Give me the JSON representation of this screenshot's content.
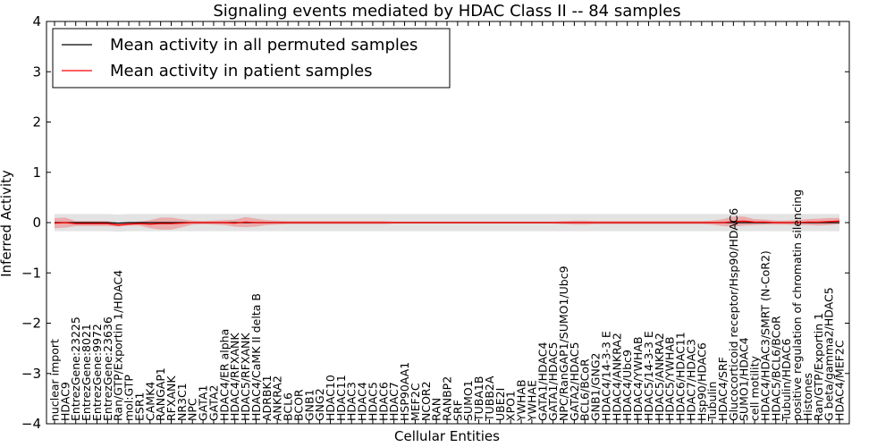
{
  "chart_data": {
    "type": "line",
    "title": "Signaling events mediated by HDAC Class II -- 84 samples",
    "xlabel": "Cellular Entities",
    "ylabel": "Inferred Activity",
    "ylim": [
      -4,
      4
    ],
    "yticks": [
      4,
      3,
      2,
      1,
      0,
      -1,
      -2,
      -3,
      -4
    ],
    "grid": false,
    "legend_position": "top-left",
    "categories": [
      "nuclear import",
      "HDAC9",
      "EntrezGene:23225",
      "EntrezGene:8021",
      "EntrezGene:9972",
      "EntrezGene:23636",
      "Ran/GTP/Exportin 1/HDAC4",
      "mol:GTP",
      "ESR1",
      "CAMK4",
      "RANGAP1",
      "RFXANK",
      "NR3C1",
      "NPC",
      "GATA1",
      "GATA2",
      "HDAC4/ER alpha",
      "HDAC4/RFXANK",
      "HDAC5/RFXANK",
      "HDAC4/CaMK II delta B",
      "ADRBK1",
      "ANKRA2",
      "BCL6",
      "BCOR",
      "GNB1",
      "GNG2",
      "HDAC10",
      "HDAC11",
      "HDAC3",
      "HDAC4",
      "HDAC5",
      "HDAC6",
      "HDAC7",
      "HSP90AA1",
      "MEF2C",
      "NCOR2",
      "RAN",
      "RANBP2",
      "SRF",
      "SUMO1",
      "TUBA1B",
      "TUBB2A",
      "UBE2I",
      "XPO1",
      "YWHAB",
      "YWHAE",
      "GATA1/HDAC4",
      "GATA1/HDAC5",
      "NPC/RanGAP1/SUMO1/Ubc9",
      "GATA2/HDAC5",
      "BCL6/BCoR",
      "GNB1/GNG2",
      "HDAC4/14-3-3 E",
      "HDAC4/ANKRA2",
      "HDAC4/Ubc9",
      "HDAC4/YWHAB",
      "HDAC5/14-3-3 E",
      "HDAC5/ANKRA2",
      "HDAC5/YWHAB",
      "HDAC6/HDAC11",
      "HDAC7/HDAC3",
      "Hsp90/HDAC6",
      "Tubulin",
      "HDAC4/SRF",
      "Glucocorticoid receptor/Hsp90/HDAC6",
      "SUMO1/HDAC4",
      "cell motility",
      "HDAC4/HDAC3/SMRT (N-CoR2)",
      "HDAC5/BCL6/BCoR",
      "Tubulin/HDAC6",
      "positive regulation of chromatin silencing",
      "Histones",
      "Ran/GTP/Exportin 1",
      "G beta/gamma2/HDAC5",
      "HDAC4/MEF2C"
    ],
    "series": [
      {
        "name": "Mean activity in all permuted samples",
        "color": "#000000",
        "values": [
          0,
          0,
          0,
          0,
          0,
          0,
          -0.01,
          0,
          0,
          0,
          0,
          0,
          0,
          0,
          0,
          0,
          0,
          0,
          0,
          0,
          0,
          0,
          0,
          0,
          0,
          0,
          0,
          0,
          0,
          0,
          0,
          0,
          0,
          0,
          0,
          0,
          0,
          0,
          0,
          0,
          0,
          0,
          0,
          0,
          0,
          0,
          0,
          0,
          0,
          0,
          0,
          0,
          0,
          0,
          0,
          0,
          0,
          0,
          0,
          0,
          0,
          0,
          0,
          0,
          0,
          0,
          0,
          0,
          0,
          0,
          0,
          0,
          0,
          0,
          0
        ],
        "band": 0.17
      },
      {
        "name": "Mean activity in patient samples",
        "color": "#ff0000",
        "values": [
          -0.01,
          0,
          -0.02,
          -0.02,
          -0.02,
          -0.02,
          -0.05,
          -0.03,
          -0.02,
          -0.03,
          -0.02,
          -0.02,
          -0.01,
          0,
          0,
          0,
          0,
          -0.01,
          0.01,
          0,
          0,
          0,
          0,
          0,
          0,
          0,
          0,
          0,
          0,
          0,
          0,
          0,
          0,
          0,
          0,
          0,
          0,
          0,
          0,
          0,
          0,
          0,
          0,
          0,
          0,
          0,
          0,
          0,
          0,
          0,
          0,
          0,
          0,
          0,
          0,
          0,
          0,
          0,
          0,
          0,
          0,
          0,
          0,
          0,
          0.02,
          0.03,
          0.01,
          0.01,
          0,
          0,
          0,
          0.01,
          0.01,
          0.02,
          0.03
        ],
        "band": [
          0.1,
          0.1,
          0.05,
          0.05,
          0.05,
          0.05,
          0.03,
          0.03,
          0.04,
          0.08,
          0.12,
          0.12,
          0.08,
          0.04,
          0.03,
          0.04,
          0.05,
          0.07,
          0.1,
          0.08,
          0.05,
          0.04,
          0.03,
          0.03,
          0.03,
          0.03,
          0.03,
          0.03,
          0.03,
          0.03,
          0.03,
          0.03,
          0.02,
          0.02,
          0.02,
          0.02,
          0.02,
          0.02,
          0.02,
          0.02,
          0.02,
          0.02,
          0.02,
          0.02,
          0.02,
          0.02,
          0.02,
          0.02,
          0.03,
          0.04,
          0.04,
          0.03,
          0.03,
          0.03,
          0.03,
          0.03,
          0.03,
          0.03,
          0.03,
          0.03,
          0.03,
          0.03,
          0.04,
          0.07,
          0.1,
          0.09,
          0.06,
          0.05,
          0.04,
          0.04,
          0.05,
          0.06,
          0.07,
          0.07,
          0.06
        ]
      }
    ]
  }
}
